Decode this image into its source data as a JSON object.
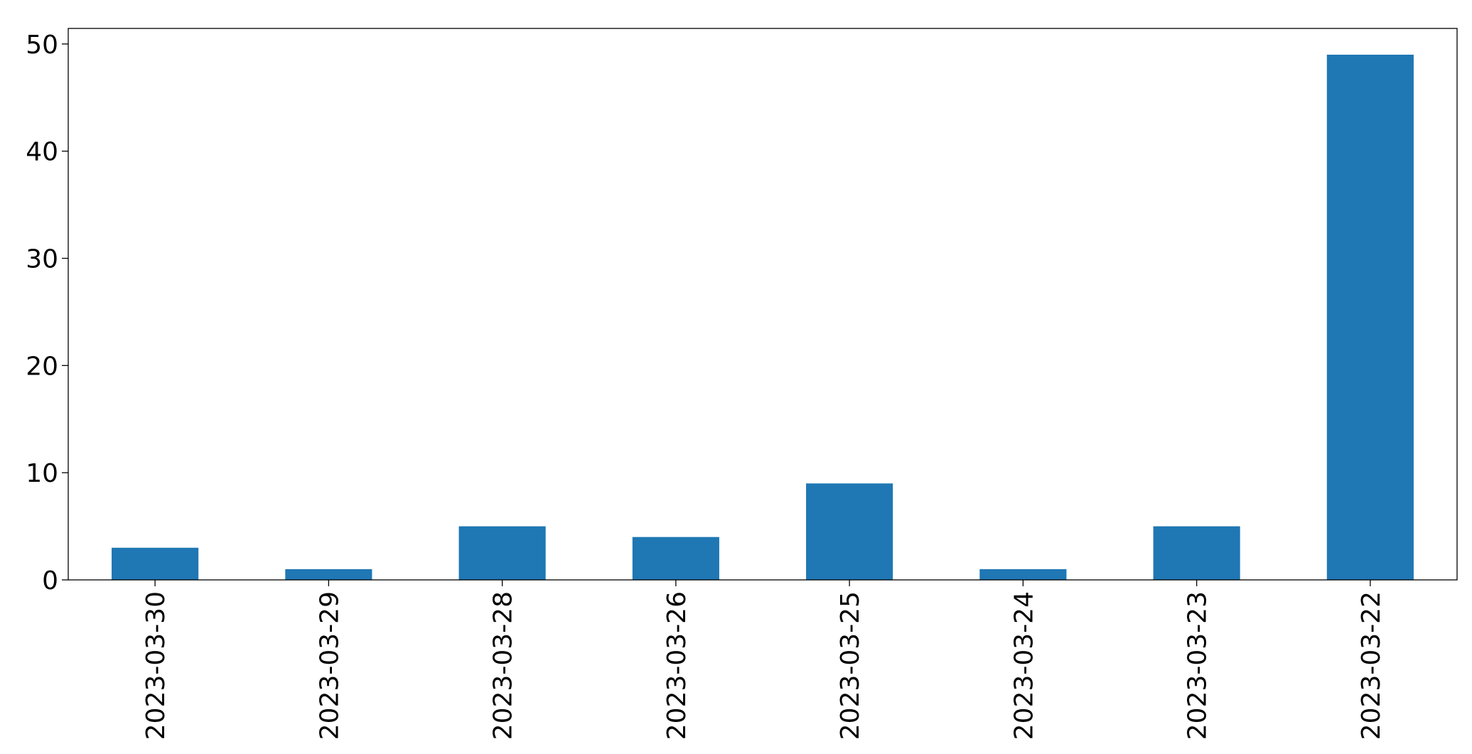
{
  "chart_data": {
    "type": "bar",
    "categories": [
      "2023-03-30",
      "2023-03-29",
      "2023-03-28",
      "2023-03-26",
      "2023-03-25",
      "2023-03-24",
      "2023-03-23",
      "2023-03-22"
    ],
    "values": [
      3,
      1,
      5,
      4,
      9,
      1,
      5,
      49
    ],
    "color": "#1f77b4",
    "ylim": [
      0,
      51.45
    ],
    "yticks": [
      0,
      10,
      20,
      30,
      40,
      50
    ],
    "grid": false
  }
}
